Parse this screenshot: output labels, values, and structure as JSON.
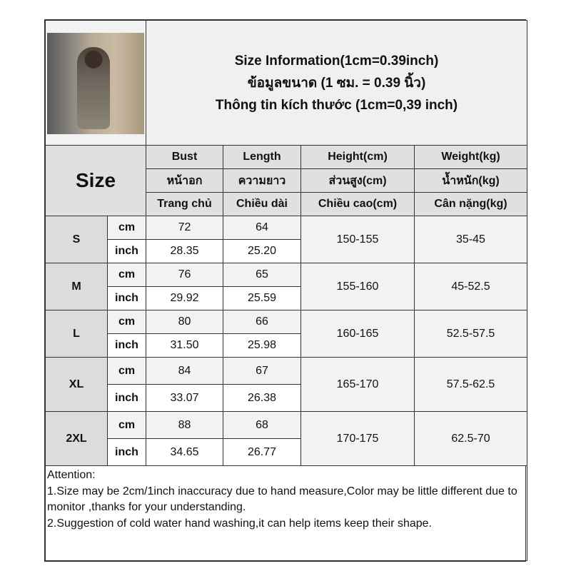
{
  "title_lines": [
    "Size Information(1cm=0.39inch)",
    "ข้อมูลขนาด (1 ซม. = 0.39 นิ้ว)",
    "Thông tin kích thước (1cm=0,39 inch)"
  ],
  "size_header": "Size",
  "columns": [
    {
      "en": "Bust",
      "th": "หน้าอก",
      "vi": "Trang chủ"
    },
    {
      "en": "Length",
      "th": "ความยาว",
      "vi": "Chiều dài"
    },
    {
      "en": "Height(cm)",
      "th": "ส่วนสูง(cm)",
      "vi": "Chiều cao(cm)"
    },
    {
      "en": "Weight(kg)",
      "th": "น้ำหนัก(kg)",
      "vi": "Cân nặng(kg)"
    }
  ],
  "units": {
    "cm": "cm",
    "inch": "inch"
  },
  "rows": [
    {
      "size": "S",
      "bust_cm": "72",
      "length_cm": "64",
      "bust_inch": "28.35",
      "length_inch": "25.20",
      "height": "150-155",
      "weight": "35-45"
    },
    {
      "size": "M",
      "bust_cm": "76",
      "length_cm": "65",
      "bust_inch": "29.92",
      "length_inch": "25.59",
      "height": "155-160",
      "weight": "45-52.5"
    },
    {
      "size": "L",
      "bust_cm": "80",
      "length_cm": "66",
      "bust_inch": "31.50",
      "length_inch": "25.98",
      "height": "160-165",
      "weight": "52.5-57.5"
    },
    {
      "size": "XL",
      "bust_cm": "84",
      "length_cm": "67",
      "bust_inch": "33.07",
      "length_inch": "26.38",
      "height": "165-170",
      "weight": "57.5-62.5"
    },
    {
      "size": "2XL",
      "bust_cm": "88",
      "length_cm": "68",
      "bust_inch": "34.65",
      "length_inch": "26.77",
      "height": "170-175",
      "weight": "62.5-70"
    }
  ],
  "notes": {
    "heading": "Attention:",
    "line1": "1.Size may be 2cm/1inch inaccuracy due to hand measure,Color may be little different due to monitor ,thanks for your understanding.",
    "line2": "2.Suggestion of cold water hand washing,it can help items keep their shape."
  }
}
